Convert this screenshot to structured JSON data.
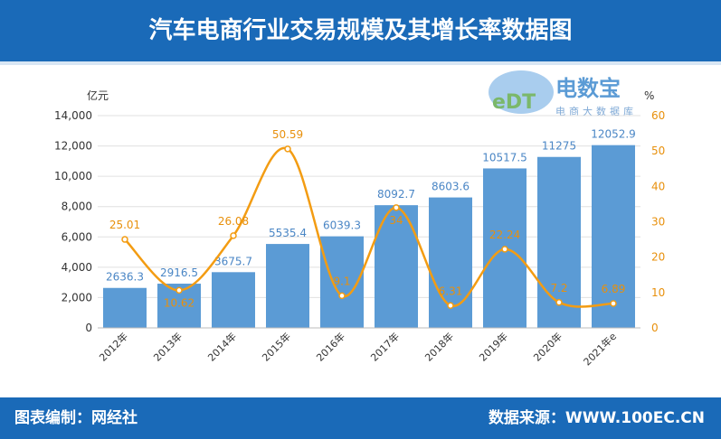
{
  "header": {
    "title": "汽车电商行业交易规模及其增长率数据图"
  },
  "footer": {
    "left": "图表编制：网经社",
    "right": "数据来源：WWW.100EC.CN"
  },
  "logo": {
    "name": "电数宝",
    "sub": "电商大数据库",
    "mark": "eDT"
  },
  "chart_data": {
    "type": "bar+line",
    "categories": [
      "2012年",
      "2013年",
      "2014年",
      "2015年",
      "2016年",
      "2017年",
      "2018年",
      "2019年",
      "2020年",
      "2021年e"
    ],
    "series": [
      {
        "type": "bar",
        "values": [
          2636.3,
          2916.5,
          3675.7,
          5535.4,
          6039.3,
          8092.7,
          8603.6,
          10517.5,
          11275,
          12052.9
        ],
        "color": "#5b9bd5"
      },
      {
        "type": "line",
        "values": [
          25.01,
          10.62,
          26.08,
          50.59,
          9.1,
          34,
          6.31,
          22.24,
          7.2,
          6.89
        ],
        "color": "#f39c12"
      }
    ],
    "ylabel": "亿元",
    "y2label": "%",
    "ylim": [
      0,
      14000
    ],
    "yticks": [
      "0",
      "2,000",
      "4,000",
      "6,000",
      "8,000",
      "10,000",
      "12,000",
      "14,000"
    ],
    "y2lim": [
      0,
      60
    ],
    "y2ticks": [
      "0",
      "10",
      "20",
      "30",
      "40",
      "50",
      "60"
    ],
    "grid": true
  }
}
